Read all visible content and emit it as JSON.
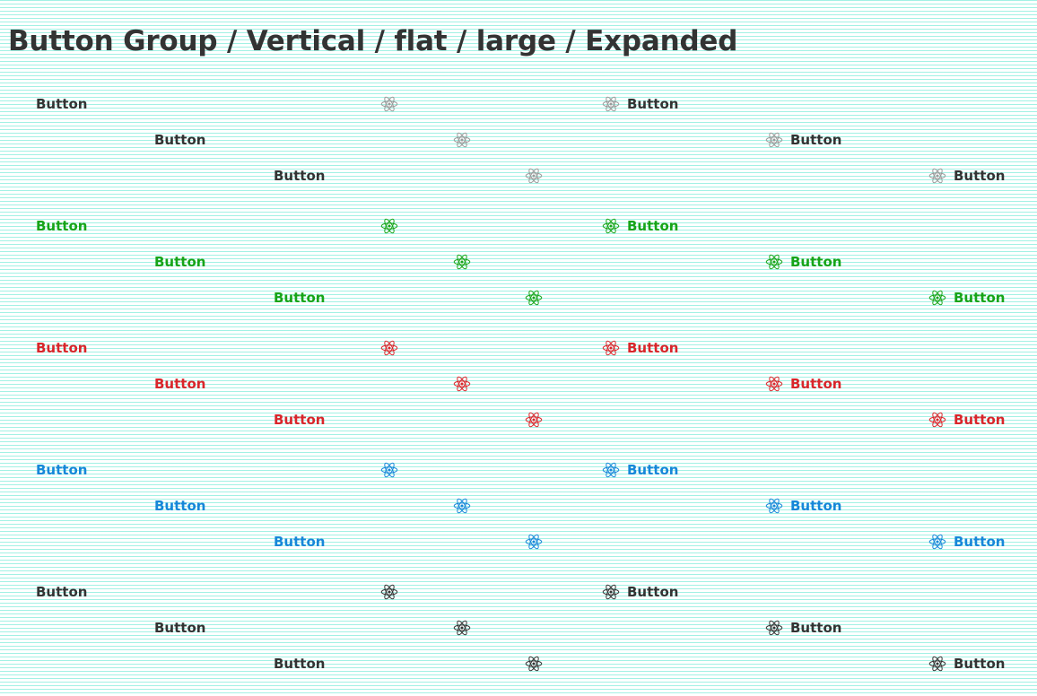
{
  "page": {
    "title": "Button Group / Vertical / flat / large / Expanded"
  },
  "variants": [
    {
      "name": "default",
      "color": "#333333",
      "icon_color": "#9a9a9a",
      "rows": [
        {
          "text_button": "Button",
          "icon_button": "atom-icon",
          "icon_text_button": "Button"
        },
        {
          "text_button": "Button",
          "icon_button": "atom-icon",
          "icon_text_button": "Button"
        },
        {
          "text_button": "Button",
          "icon_button": "atom-icon",
          "icon_text_button": "Button"
        }
      ]
    },
    {
      "name": "success",
      "color": "#18a418",
      "icon_color": "#18a418",
      "rows": [
        {
          "text_button": "Button",
          "icon_button": "atom-icon",
          "icon_text_button": "Button"
        },
        {
          "text_button": "Button",
          "icon_button": "atom-icon",
          "icon_text_button": "Button"
        },
        {
          "text_button": "Button",
          "icon_button": "atom-icon",
          "icon_text_button": "Button"
        }
      ]
    },
    {
      "name": "danger",
      "color": "#d9262b",
      "icon_color": "#d9262b",
      "rows": [
        {
          "text_button": "Button",
          "icon_button": "atom-icon",
          "icon_text_button": "Button"
        },
        {
          "text_button": "Button",
          "icon_button": "atom-icon",
          "icon_text_button": "Button"
        },
        {
          "text_button": "Button",
          "icon_button": "atom-icon",
          "icon_text_button": "Button"
        }
      ]
    },
    {
      "name": "primary",
      "color": "#1787d9",
      "icon_color": "#1787d9",
      "rows": [
        {
          "text_button": "Button",
          "icon_button": "atom-icon",
          "icon_text_button": "Button"
        },
        {
          "text_button": "Button",
          "icon_button": "atom-icon",
          "icon_text_button": "Button"
        },
        {
          "text_button": "Button",
          "icon_button": "atom-icon",
          "icon_text_button": "Button"
        }
      ]
    },
    {
      "name": "dark",
      "color": "#333333",
      "icon_color": "#333333",
      "rows": [
        {
          "text_button": "Button",
          "icon_button": "atom-icon",
          "icon_text_button": "Button"
        },
        {
          "text_button": "Button",
          "icon_button": "atom-icon",
          "icon_text_button": "Button"
        },
        {
          "text_button": "Button",
          "icon_button": "atom-icon",
          "icon_text_button": "Button"
        }
      ]
    }
  ]
}
